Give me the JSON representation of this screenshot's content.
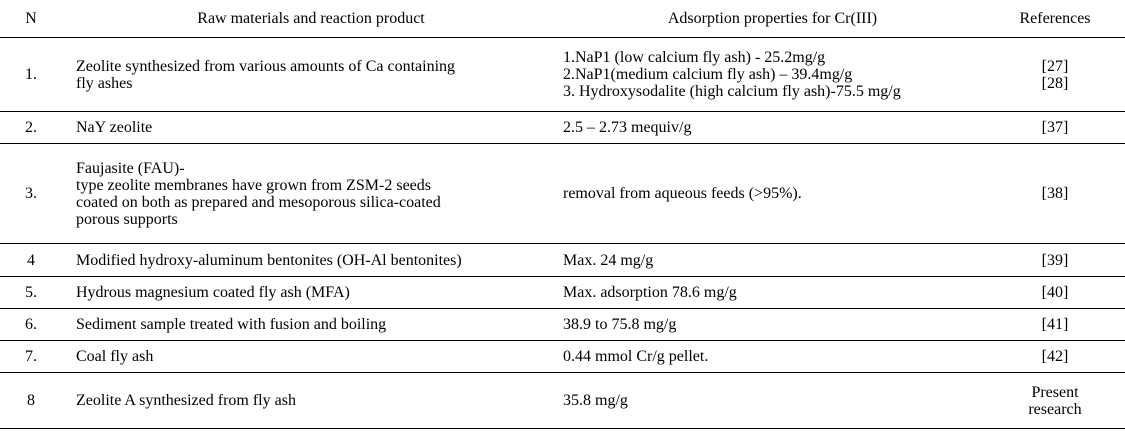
{
  "table": {
    "header": [
      "N",
      "Raw materials and reaction product",
      "Adsorption properties for Cr(III)",
      "References"
    ],
    "rows": [
      [
        [
          "1."
        ],
        [
          "Zeolite synthesized from various amounts of Ca containing",
          "fly ashes"
        ],
        [
          "1.NaP1 (low calcium fly ash) - 25.2mg/g",
          "2.NaP1(medium calcium fly ash) – 39.4mg/g",
          "3. Hydroxysodalite (high calcium fly ash)-75.5 mg/g"
        ],
        [
          "[27]",
          "[28]"
        ]
      ],
      [
        [
          "2."
        ],
        [
          "NaY zeolite"
        ],
        [
          "2.5 – 2.73 mequiv/g"
        ],
        [
          "[37]"
        ]
      ],
      [
        [
          "3."
        ],
        [
          "Faujasite (FAU)-",
          "type zeolite membranes have grown from ZSM-2 seeds",
          "coated on both as prepared and mesoporous silica-coated",
          "porous supports"
        ],
        [
          " removal from aqueous feeds (>95%)."
        ],
        [
          "[38]"
        ]
      ],
      [
        [
          "4"
        ],
        [
          "Modified hydroxy-aluminum bentonites (OH-Al bentonites)"
        ],
        [
          "Max. 24 mg/g"
        ],
        [
          "[39]"
        ]
      ],
      [
        [
          "5."
        ],
        [
          "Hydrous magnesium coated fly ash (MFA)"
        ],
        [
          "Max. adsorption 78.6 mg/g"
        ],
        [
          "[40]"
        ]
      ],
      [
        [
          "6."
        ],
        [
          "Sediment sample treated with fusion and boiling"
        ],
        [
          "38.9 to 75.8 mg/g"
        ],
        [
          "[41]"
        ]
      ],
      [
        [
          "7."
        ],
        [
          "Coal fly ash"
        ],
        [
          "0.44 mmol Cr/g pellet."
        ],
        [
          "[42]"
        ]
      ],
      [
        [
          "8"
        ],
        [
          "Zeolite A synthesized from fly ash"
        ],
        [
          "35.8 mg/g"
        ],
        [
          "Present",
          "research"
        ]
      ]
    ]
  }
}
